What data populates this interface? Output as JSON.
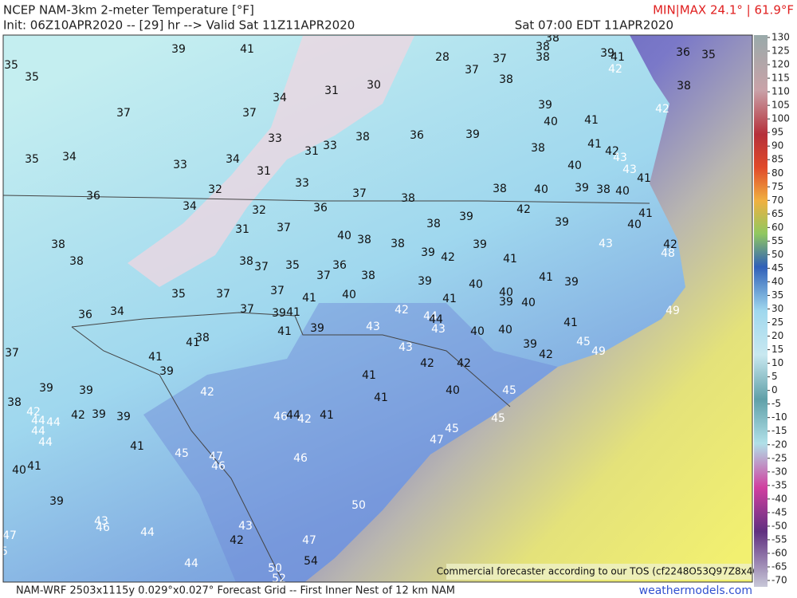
{
  "header": {
    "title": "NCEP NAM-3km 2-meter Temperature [°F]",
    "minmax": "MIN|MAX 24.1° | 61.9°F",
    "init": "Init: 06Z10APR2020 -- [29] hr --> Valid Sat 11Z11APR2020",
    "valid_local": "Sat 07:00 EDT 11APR2020"
  },
  "footer": {
    "grid": "NAM-WRF 2503x1115y 0.029°x0.027° Forecast Grid -- First Inner Nest of 12 km NAM",
    "site": "weathermodels.com"
  },
  "notice": "Commercial forecaster according to our TOS (cf2248O53Q97Z8x406)",
  "colorbar_ticks": [
    130,
    125,
    120,
    115,
    110,
    105,
    100,
    95,
    90,
    85,
    80,
    75,
    70,
    65,
    60,
    55,
    50,
    45,
    40,
    35,
    30,
    25,
    20,
    15,
    10,
    5,
    0,
    -5,
    -10,
    -15,
    -20,
    -25,
    -30,
    -35,
    -40,
    -45,
    -50,
    -55,
    -60,
    -65,
    -70
  ],
  "map_labels": [
    35,
    35,
    39,
    41,
    28,
    37,
    38,
    38,
    38,
    39,
    41,
    42,
    36,
    35,
    37,
    38,
    30,
    31,
    34,
    37,
    37,
    38,
    42,
    39,
    40,
    41,
    33,
    38,
    36,
    39,
    31,
    33,
    41,
    42,
    38,
    43,
    40,
    35,
    34,
    33,
    34,
    31,
    43,
    41,
    33,
    32,
    37,
    38,
    38,
    40,
    39,
    38,
    40,
    36,
    34,
    32,
    36,
    42,
    41,
    39,
    38,
    39,
    40,
    31,
    37,
    40,
    38,
    38,
    39,
    43,
    42,
    48,
    38,
    38,
    39,
    42,
    38,
    37,
    35,
    36,
    37,
    38,
    41,
    41,
    39,
    39,
    40,
    40,
    39,
    40,
    41,
    35,
    37,
    37,
    41,
    40,
    37,
    39,
    41,
    42,
    44,
    44,
    43,
    49,
    36,
    34,
    39,
    41,
    43,
    40,
    40,
    41,
    45,
    39,
    42,
    49,
    43,
    38,
    41,
    41,
    39,
    42,
    42,
    37,
    41,
    39,
    39,
    41,
    40,
    45,
    42,
    38,
    42,
    44,
    44,
    42,
    39,
    39,
    46,
    44,
    42,
    41,
    45,
    44,
    45,
    47,
    44,
    41,
    45,
    47,
    46,
    46,
    41,
    40,
    39,
    50,
    43,
    46,
    44,
    43,
    42,
    47,
    45,
    47,
    44,
    50,
    54,
    52
  ]
}
